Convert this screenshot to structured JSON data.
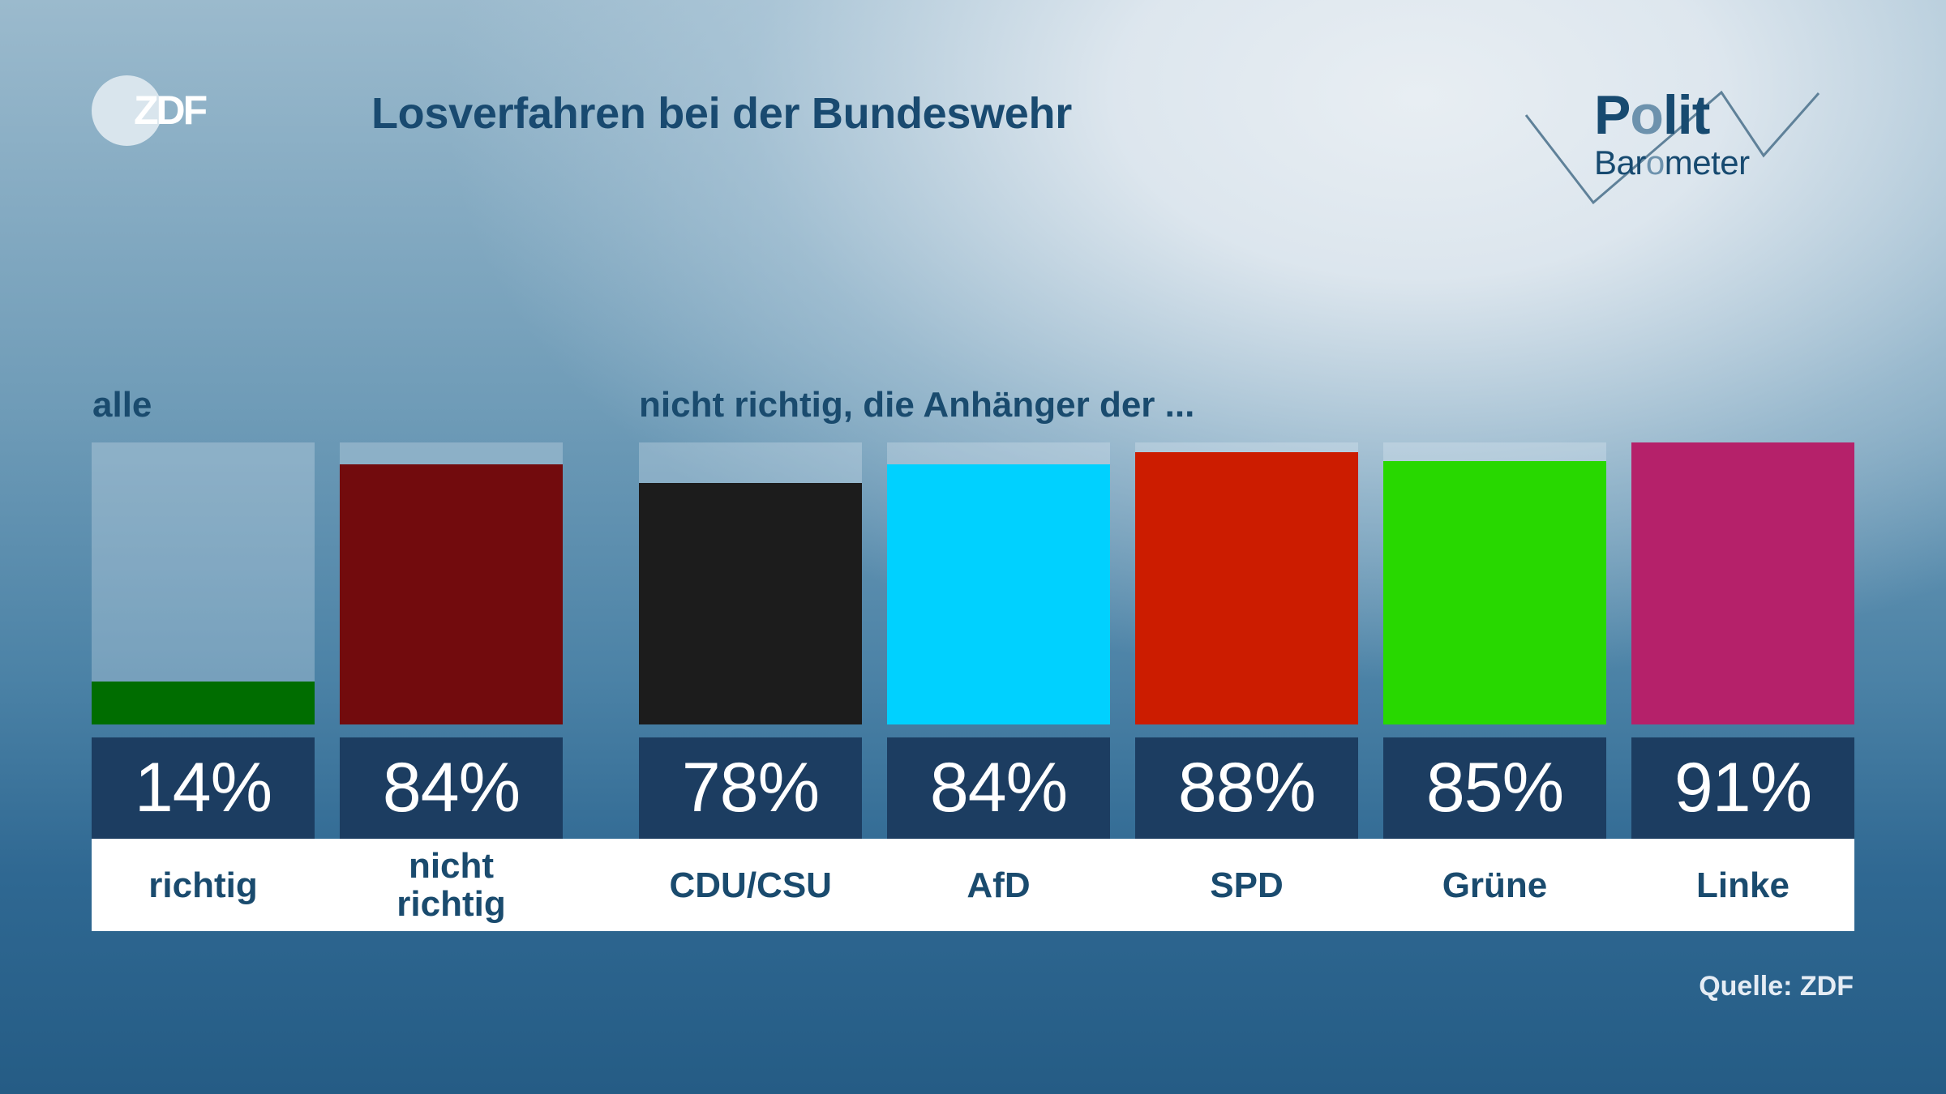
{
  "header": {
    "broadcaster_logo": "ZDF",
    "title": "Losverfahren bei der Bundeswehr",
    "brand_logo": {
      "line1": "Polit",
      "line2": "Barometer"
    }
  },
  "source": "Quelle: ZDF",
  "colors": {
    "text_dark": "#1a4b6e",
    "value_box": "#1c3d61",
    "richtig": "#006d00",
    "nicht_richtig": "#720b0d",
    "cdu_csu": "#1c1c1c",
    "afd": "#00d1ff",
    "spd": "#cc1c00",
    "gruene": "#28d800",
    "linke": "#b5216a"
  },
  "chart_data": {
    "type": "bar",
    "title": "Losverfahren bei der Bundeswehr",
    "xlabel": "",
    "ylabel": "",
    "ylim": [
      0,
      91
    ],
    "grid": false,
    "legend": "none",
    "groups": [
      {
        "label": "alle",
        "categories": [
          "richtig",
          "nicht richtig"
        ],
        "values": [
          14,
          84
        ],
        "value_labels": [
          "14%",
          "84%"
        ],
        "colors": [
          "#006d00",
          "#720b0d"
        ]
      },
      {
        "label": "nicht richtig, die Anhänger der ...",
        "categories": [
          "CDU/CSU",
          "AfD",
          "SPD",
          "Grüne",
          "Linke"
        ],
        "values": [
          78,
          84,
          88,
          85,
          91
        ],
        "value_labels": [
          "78%",
          "84%",
          "88%",
          "85%",
          "91%"
        ],
        "colors": [
          "#1c1c1c",
          "#00d1ff",
          "#cc1c00",
          "#28d800",
          "#b5216a"
        ]
      }
    ]
  }
}
